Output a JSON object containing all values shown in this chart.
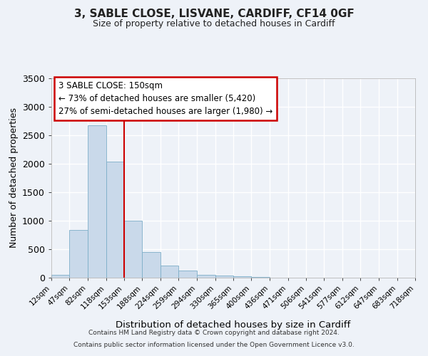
{
  "title": "3, SABLE CLOSE, LISVANE, CARDIFF, CF14 0GF",
  "subtitle": "Size of property relative to detached houses in Cardiff",
  "xlabel": "Distribution of detached houses by size in Cardiff",
  "ylabel": "Number of detached properties",
  "bar_color": "#c9d9ea",
  "bar_edge_color": "#7daec8",
  "background_color": "#eef2f8",
  "grid_color": "#ffffff",
  "bin_edges": [
    12,
    47,
    82,
    118,
    153,
    188,
    224,
    259,
    294,
    330,
    365,
    400,
    436,
    471,
    506,
    541,
    577,
    612,
    647,
    683,
    718
  ],
  "bin_labels": [
    "12sqm",
    "47sqm",
    "82sqm",
    "118sqm",
    "153sqm",
    "188sqm",
    "224sqm",
    "259sqm",
    "294sqm",
    "330sqm",
    "365sqm",
    "400sqm",
    "436sqm",
    "471sqm",
    "506sqm",
    "541sqm",
    "577sqm",
    "612sqm",
    "647sqm",
    "683sqm",
    "718sqm"
  ],
  "bar_heights": [
    55,
    840,
    2670,
    2040,
    1000,
    450,
    210,
    130,
    55,
    40,
    25,
    15,
    5,
    5,
    0,
    0,
    0,
    0,
    0,
    0
  ],
  "vline_x": 153,
  "vline_color": "#cc0000",
  "ylim": [
    0,
    3500
  ],
  "yticks": [
    0,
    500,
    1000,
    1500,
    2000,
    2500,
    3000,
    3500
  ],
  "annotation_title": "3 SABLE CLOSE: 150sqm",
  "annotation_line1": "← 73% of detached houses are smaller (5,420)",
  "annotation_line2": "27% of semi-detached houses are larger (1,980) →",
  "annotation_box_color": "#ffffff",
  "annotation_border_color": "#cc0000",
  "footer_line1": "Contains HM Land Registry data © Crown copyright and database right 2024.",
  "footer_line2": "Contains public sector information licensed under the Open Government Licence v3.0."
}
